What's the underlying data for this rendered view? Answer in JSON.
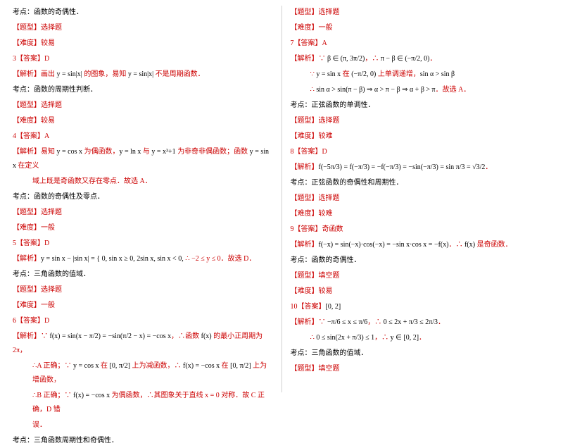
{
  "colors": {
    "red": "#cc0000",
    "black": "#000000",
    "divider": "#d0d0d0",
    "background": "#ffffff"
  },
  "typography": {
    "body_font": "SimSun / STSong serif",
    "formula_font": "Times New Roman",
    "fontsize_pt": 10,
    "line_height": 2.0
  },
  "left": {
    "l1": "考点：函数的奇偶性．",
    "l2": "【题型】选择题",
    "l3": "【难度】较易",
    "l4_a": "3【答案】D",
    "l5_a": "【解析】画出 ",
    "l5_b": "y = sin|x|",
    "l5_c": " 的图象，易知 ",
    "l5_d": "y = sin|x|",
    "l5_e": " 不是周期函数．",
    "l6": "考点：函数的周期性判断．",
    "l7": "【题型】选择题",
    "l8": "【难度】较易",
    "l9": "4【答案】A",
    "l10_a": "【解析】易知 ",
    "l10_b": "y = cos x",
    "l10_c": " 为偶函数，",
    "l10_d": "y = ln x",
    "l10_e": " 与 ",
    "l10_f": "y = x³+1",
    "l10_g": " 为非奇非偶函数；函数 ",
    "l10_h": "y = sin x",
    "l10_i": " 在定义",
    "l10j": "域上既是奇函数又存在零点．故选 A．",
    "l11": "考点：函数的奇偶性及零点．",
    "l12": "【题型】选择题",
    "l13": "【难度】一般",
    "l14": "5【答案】D",
    "l15_a": "【解析】",
    "l15_b": "y = sin x − |sin x| = { 0, sin x ≥ 0,  2sin x, sin x < 0,",
    "l15_c": "  ∴ −2 ≤ y ≤ 0．故选 D．",
    "l16": "考点：三角函数的值域．",
    "l17": "【题型】选择题",
    "l18": "【难度】一般",
    "l19": "6【答案】D",
    "l20_a": "【解析】∵ ",
    "l20_b": "f(x) = sin(x − π/2) = −sin(π/2 − x) = −cos x",
    "l20_c": "，∴函数 ",
    "l20_d": "f(x)",
    "l20_e": " 的最小正周期为 2π，",
    "l21_a": "∴A 正确；∵ ",
    "l21_b": "y = cos x",
    "l21_c": " 在 ",
    "l21_d": "[0, π/2]",
    "l21_e": " 上为减函数，∴ ",
    "l21_f": "f(x) = −cos x",
    "l21_g": " 在 ",
    "l21_h": "[0, π/2]",
    "l21_i": " 上为增函数，",
    "l22_a": "∴B 正确；∵ ",
    "l22_b": "f(x) = −cos x",
    "l22_c": " 为偶函数，∴其图象关于直线 x = 0 对称．故 C 正确，D 错",
    "l22d": "误．",
    "l23": "考点：三角函数周期性和奇偶性．"
  },
  "right": {
    "r1": "【题型】选择题",
    "r2": "【难度】一般",
    "r3": "7【答案】A",
    "r4_a": "【解析】∵ ",
    "r4_b": "β ∈ (π, 3π/2)",
    "r4_c": "，∴ ",
    "r4_d": "π − β ∈ (−π/2, 0)",
    "r4_e": "．",
    "r5_a": "∵ ",
    "r5_b": "y = sin x",
    "r5_c": " 在 ",
    "r5_d": "(−π/2, 0)",
    "r5_e": " 上单调递增，",
    "r5_f": "sin α > sin β",
    "r6_a": "∴ ",
    "r6_b": "sin α > sin(π − β) ⇒ α > π − β ⇒ α + β > π",
    "r6_c": "．故选 A．",
    "r7": "考点：正弦函数的单调性．",
    "r8": "【题型】选择题",
    "r9": "【难度】较难",
    "r10": "8【答案】D",
    "r11_a": "【解析】",
    "r11_b": "f(−5π/3) = f(−π/3) = −f(−π/3) = −sin(−π/3) = sin π/3 = √3/2",
    "r11_c": "．",
    "r12": "考点：正弦函数的奇偶性和周期性．",
    "r13": "【题型】选择题",
    "r14": "【难度】较难",
    "r15": "9【答案】奇函数",
    "r16_a": "【解析】",
    "r16_b": "f(−x) = sin(−x)·cos(−x) = −sin x·cos x = −f(x)",
    "r16_c": "．∴ ",
    "r16_d": "f(x)",
    "r16_e": " 是奇函数．",
    "r17": "考点：函数的奇偶性．",
    "r18": "【题型】填空题",
    "r19": "【难度】较易",
    "r20_a": "10【答案】",
    "r20_b": "[0, 2]",
    "r21_a": "【解析】∵ ",
    "r21_b": "−π/6 ≤ x ≤ π/6",
    "r21_c": "，∴ ",
    "r21_d": "0 ≤ 2x + π/3 ≤ 2π/3",
    "r21_e": "．",
    "r22_a": "∴ ",
    "r22_b": "0 ≤ sin(2x + π/3) ≤ 1",
    "r22_c": "，∴ ",
    "r22_d": "y ∈ [0, 2]",
    "r22_e": "．",
    "r23": "考点：三角函数的值域．",
    "r24": "【题型】填空题"
  }
}
